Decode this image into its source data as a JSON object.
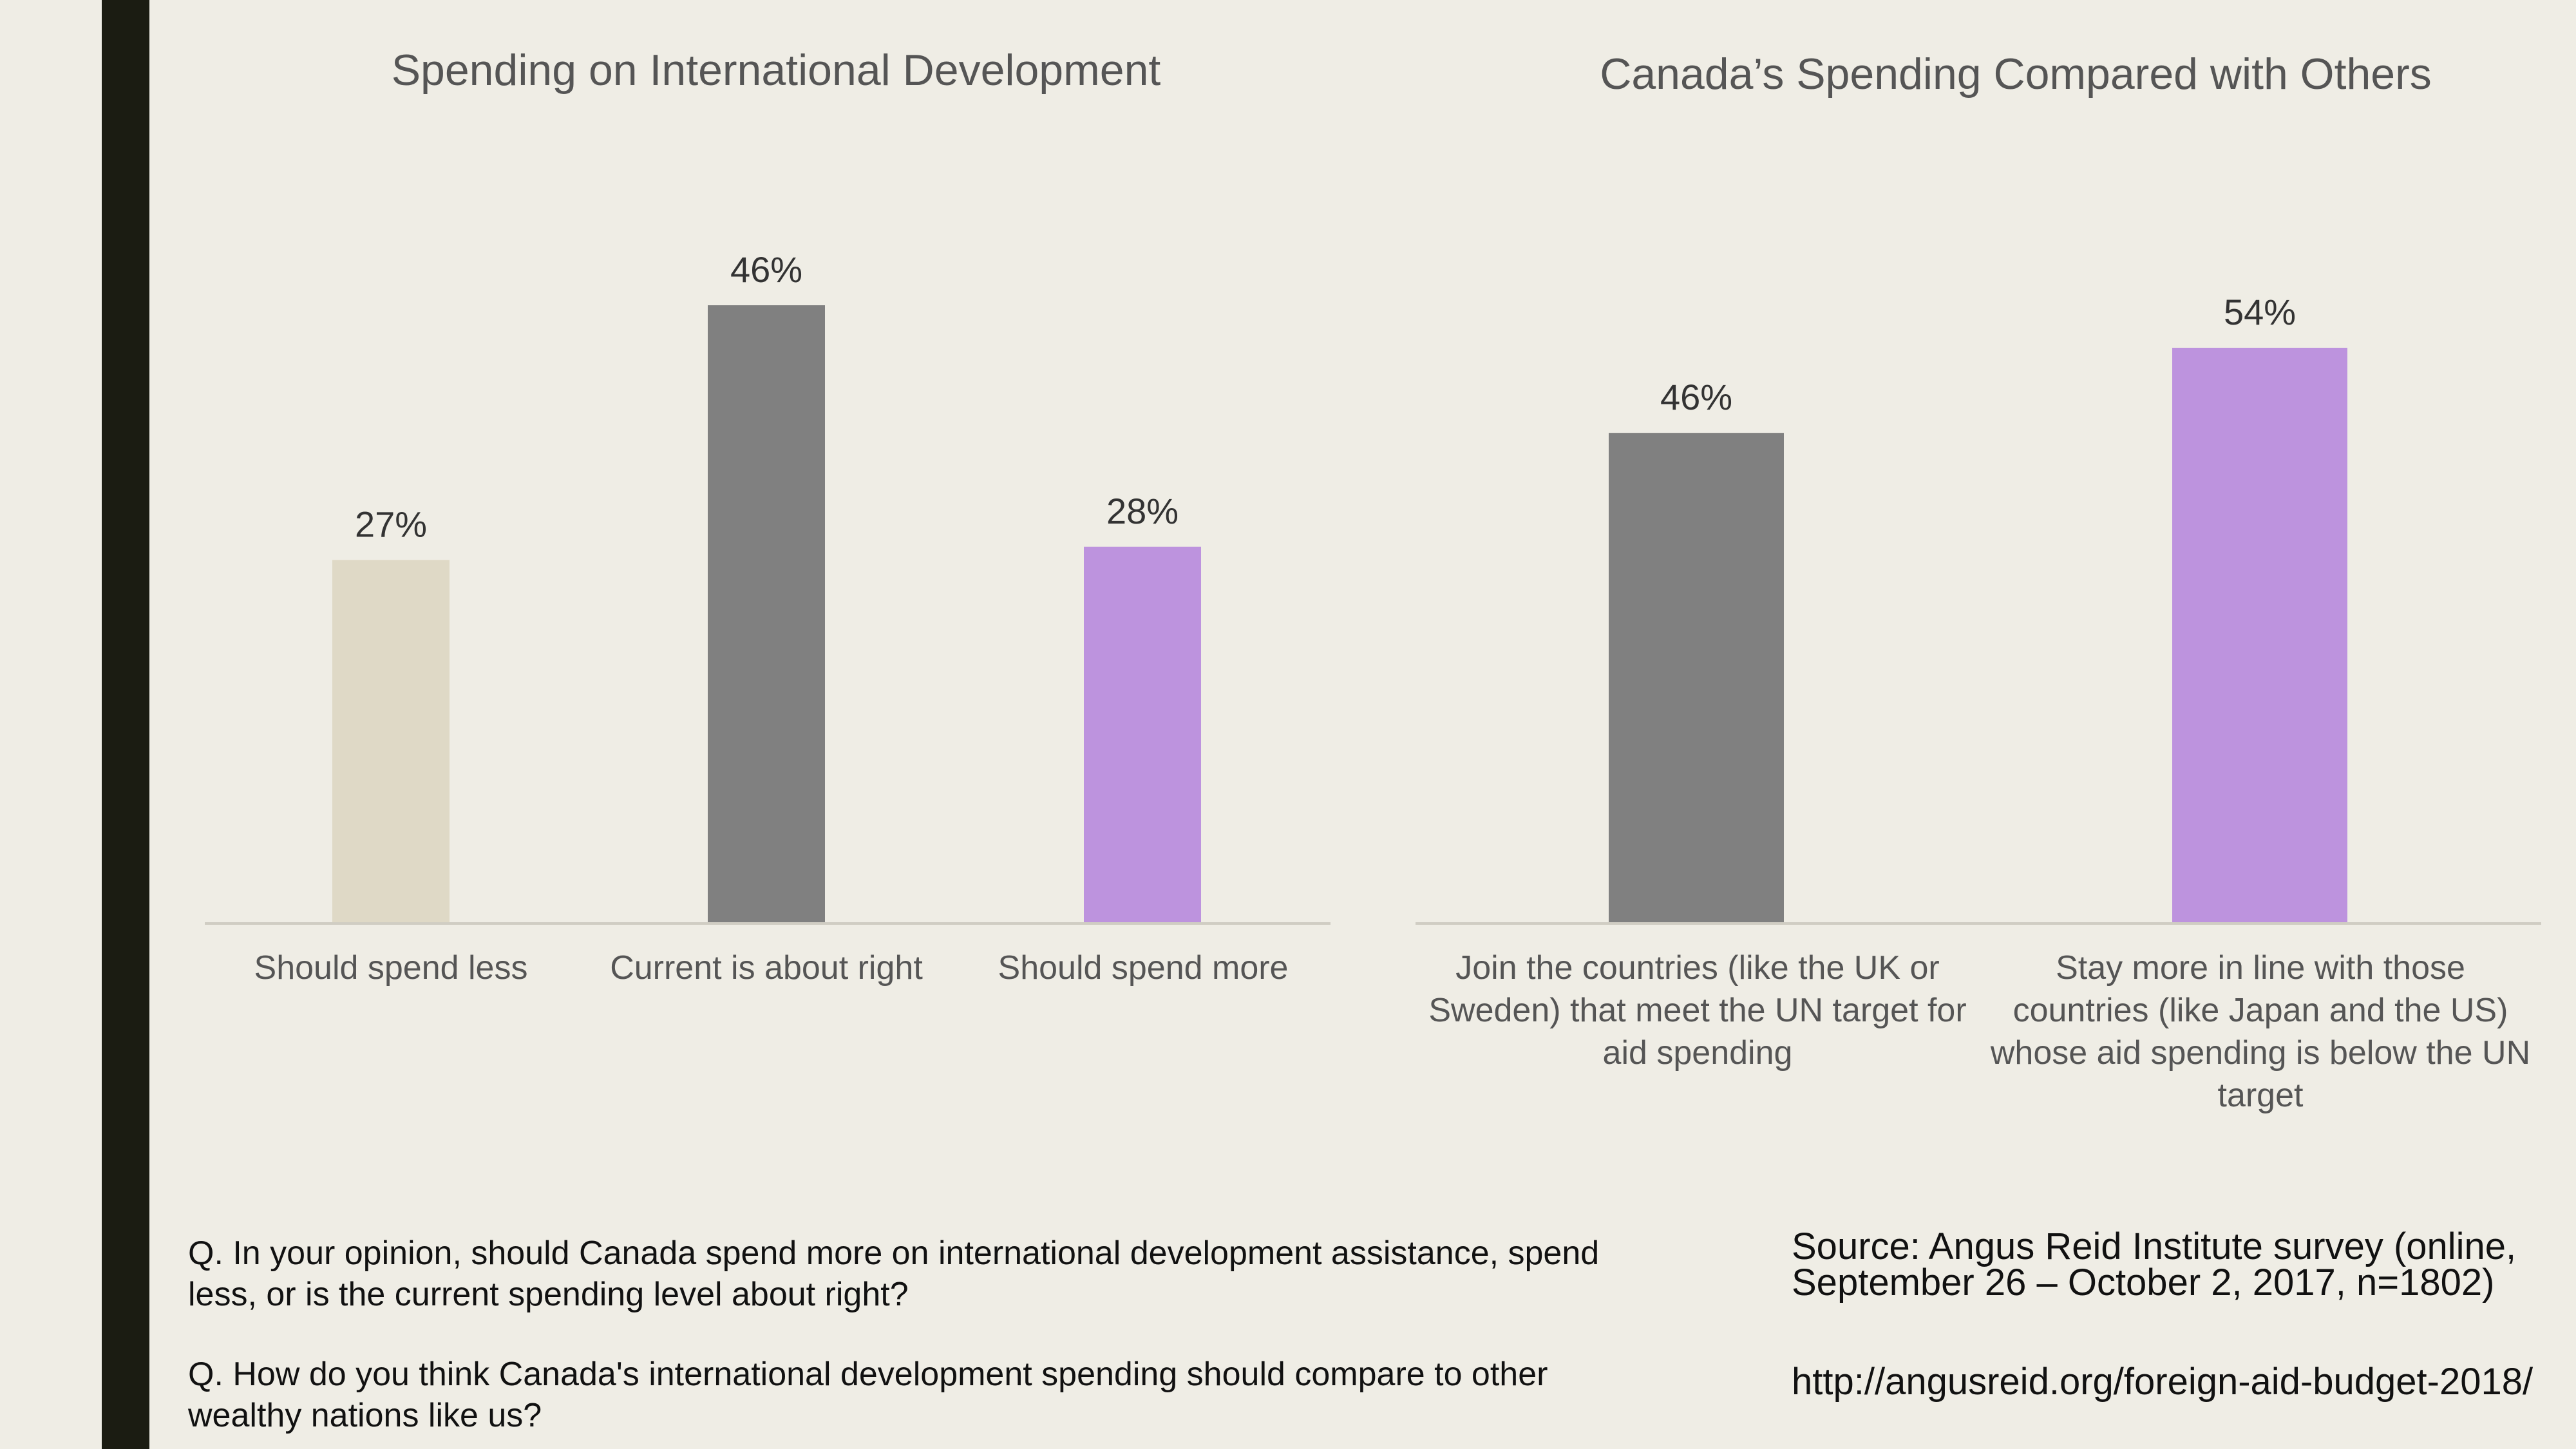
{
  "colors": {
    "background": "#efede5",
    "left_bar": "#1b1c12",
    "tan": "#dfd9c6",
    "gray": "#808080",
    "purple": "#bd93de"
  },
  "chart_data": [
    {
      "type": "bar",
      "title": "Spending on International Development",
      "categories": [
        "Should spend less",
        "Current is about right",
        "Should spend more"
      ],
      "values": [
        27,
        46,
        28
      ],
      "data_labels": [
        "27%",
        "46%",
        "28%"
      ],
      "colors": [
        "#dfd9c6",
        "#808080",
        "#bd93de"
      ],
      "ylim": [
        0,
        46
      ],
      "grid": false
    },
    {
      "type": "bar",
      "title": "Canada’s Spending Compared with Others",
      "categories": [
        "Join the countries (like the UK or Sweden) that meet the UN target for aid spending",
        "Stay more in line with those countries (like Japan and the US) whose aid spending is below the UN target"
      ],
      "values": [
        46,
        54
      ],
      "data_labels": [
        "46%",
        "54%"
      ],
      "colors": [
        "#808080",
        "#bd93de"
      ],
      "ylim": [
        0,
        54
      ],
      "grid": false
    }
  ],
  "questions": {
    "q1": "Q. In your opinion, should Canada spend more on international development assistance, spend less, or is the current spending level about right?",
    "q2": "Q. How do you think Canada's international development spending should compare to other wealthy nations like us?"
  },
  "source": {
    "text": "Source: Angus Reid Institute survey (online, September 26 – October 2, 2017, n=1802)",
    "url": "http://angusreid.org/foreign-aid-budget-2018/"
  }
}
